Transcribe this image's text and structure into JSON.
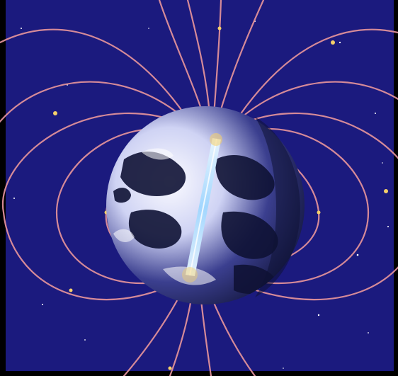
{
  "image": {
    "kind": "illustration",
    "subject": "earth-magnetic-field",
    "colors": {
      "border": "#000000",
      "space": "#1b1a7e",
      "earth_light": "#f3f4ff",
      "earth_dark": "#0f1235",
      "field_line": "#e0909a",
      "field_glow": "#f5d06a",
      "axis": "#9fd6ff"
    }
  }
}
